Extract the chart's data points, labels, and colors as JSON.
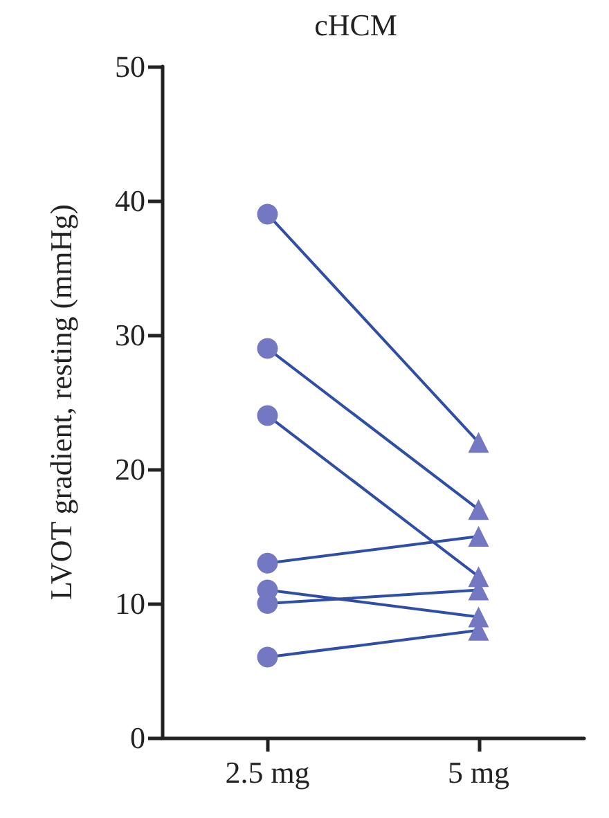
{
  "chart_data": {
    "type": "line",
    "title": "cHCM",
    "ylabel": "LVOT gradient, resting (mmHg)",
    "categories": [
      "2.5 mg",
      "5 mg"
    ],
    "ylim": [
      0,
      50
    ],
    "yticks": [
      0,
      10,
      20,
      30,
      40,
      50
    ],
    "grid": false,
    "series": [
      {
        "marker": "none",
        "color": "#2f4ea6",
        "values": [
          39,
          22
        ]
      },
      {
        "marker": "none",
        "color": "#2f4ea6",
        "values": [
          29,
          17
        ]
      },
      {
        "marker": "none",
        "color": "#2f4ea6",
        "values": [
          24,
          12
        ]
      },
      {
        "marker": "none",
        "color": "#2f4ea6",
        "values": [
          13,
          15
        ]
      },
      {
        "marker": "none",
        "color": "#2f4ea6",
        "values": [
          11,
          9
        ]
      },
      {
        "marker": "none",
        "color": "#2f4ea6",
        "values": [
          10,
          11
        ]
      },
      {
        "marker": "none",
        "color": "#2f4ea6",
        "values": [
          6,
          8
        ]
      },
      {
        "type": "scatter",
        "marker": "circle",
        "color": "#7478c2",
        "x": [
          "2.5 mg",
          "2.5 mg",
          "2.5 mg",
          "2.5 mg",
          "2.5 mg",
          "2.5 mg",
          "2.5 mg"
        ],
        "values": [
          39,
          29,
          24,
          13,
          11,
          10,
          6
        ]
      },
      {
        "type": "scatter",
        "marker": "triangle",
        "color": "#7478c2",
        "x": [
          "5 mg",
          "5 mg",
          "5 mg",
          "5 mg",
          "5 mg",
          "5 mg",
          "5 mg"
        ],
        "values": [
          22,
          17,
          15,
          12,
          11,
          9,
          8
        ]
      }
    ]
  }
}
